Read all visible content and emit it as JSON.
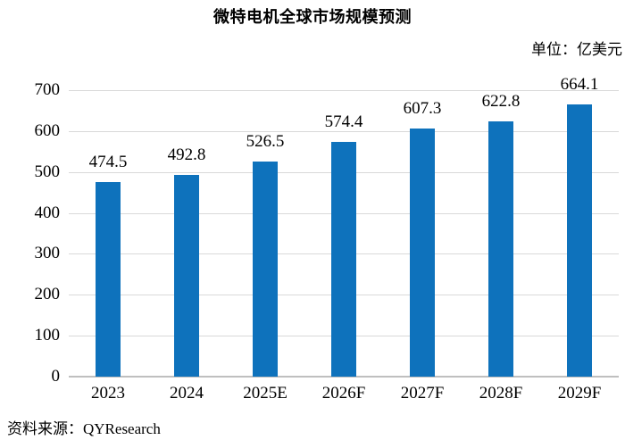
{
  "title": "微特电机全球市场规模预测",
  "unit_label": "单位：亿美元",
  "source": {
    "text": "资料来源：QYResearch"
  },
  "colors": {
    "bar": "#0e72bc",
    "gridline": "#d9d9d9",
    "axis_line": "#bfbfbf",
    "text": "#000000"
  },
  "chart_data": {
    "type": "bar",
    "title": "微特电机全球市场规模预测",
    "unit": "亿美元",
    "categories": [
      "2023",
      "2024",
      "2025E",
      "2026F",
      "2027F",
      "2028F",
      "2029F"
    ],
    "values": [
      474.5,
      492.8,
      526.5,
      574.4,
      607.3,
      622.8,
      664.1
    ],
    "value_labels": [
      "474.5",
      "492.8",
      "526.5",
      "574.4",
      "607.3",
      "622.8",
      "664.1"
    ],
    "xlabel": "",
    "ylabel": "",
    "ylim": [
      0,
      700
    ],
    "ytick_interval": 100,
    "grid": true,
    "legend": false,
    "source": "QYResearch"
  }
}
